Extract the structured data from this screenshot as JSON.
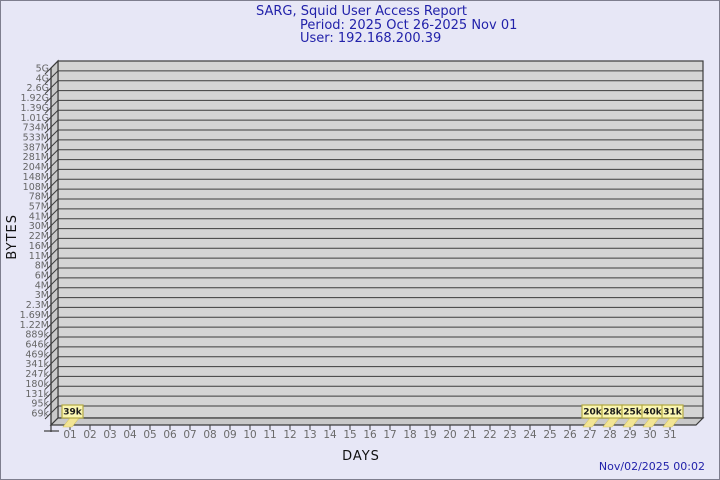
{
  "footer": {
    "timestamp": "Nov/02/2025 00:02"
  },
  "colors": {
    "background": "#e7e7f6",
    "title_text": "#2222aa",
    "timestamp_text": "#2222aa",
    "plot_fill": "#d4d4d4",
    "plot_side_fill": "#c9c9c9",
    "grid_line": "#3c3c3c",
    "axis_text": "#656565",
    "bar_fill": "#f2e494",
    "bar_border": "#d8c75e",
    "badge_fill": "#faf6b2",
    "badge_border": "#b3aa45"
  },
  "chart_data": {
    "type": "bar",
    "title": "SARG, Squid User Access Report",
    "subtitle_period": "Period: 2025 Oct 26-2025 Nov 01",
    "subtitle_user": "User: 192.168.200.39",
    "xlabel": "DAYS",
    "ylabel": "BYTES",
    "y_scale": "log",
    "grid": true,
    "legend": false,
    "ylim": [
      "69k",
      "5G"
    ],
    "y_tick_labels": [
      "5G",
      "4G",
      "2.6G",
      "1.92G",
      "1.39G",
      "1.01G",
      "734M",
      "533M",
      "387M",
      "281M",
      "204M",
      "148M",
      "108M",
      "78M",
      "57M",
      "41M",
      "30M",
      "22M",
      "16M",
      "11M",
      "8M",
      "6M",
      "4M",
      "3M",
      "2.3M",
      "1.69M",
      "1.22M",
      "889k",
      "646k",
      "469k",
      "341k",
      "247k",
      "180k",
      "131k",
      "95k",
      "69k"
    ],
    "days": [
      "01",
      "02",
      "03",
      "04",
      "05",
      "06",
      "07",
      "08",
      "09",
      "10",
      "11",
      "12",
      "13",
      "14",
      "15",
      "16",
      "17",
      "18",
      "19",
      "20",
      "21",
      "22",
      "23",
      "24",
      "25",
      "26",
      "27",
      "28",
      "29",
      "30",
      "31"
    ],
    "points": [
      {
        "day": "01",
        "bytes_label": "39k",
        "bytes": 39000
      },
      {
        "day": "27",
        "bytes_label": "20k",
        "bytes": 20000
      },
      {
        "day": "28",
        "bytes_label": "28k",
        "bytes": 28000
      },
      {
        "day": "29",
        "bytes_label": "25k",
        "bytes": 25000
      },
      {
        "day": "30",
        "bytes_label": "40k",
        "bytes": 40000
      },
      {
        "day": "31",
        "bytes_label": "31k",
        "bytes": 31000
      }
    ]
  }
}
